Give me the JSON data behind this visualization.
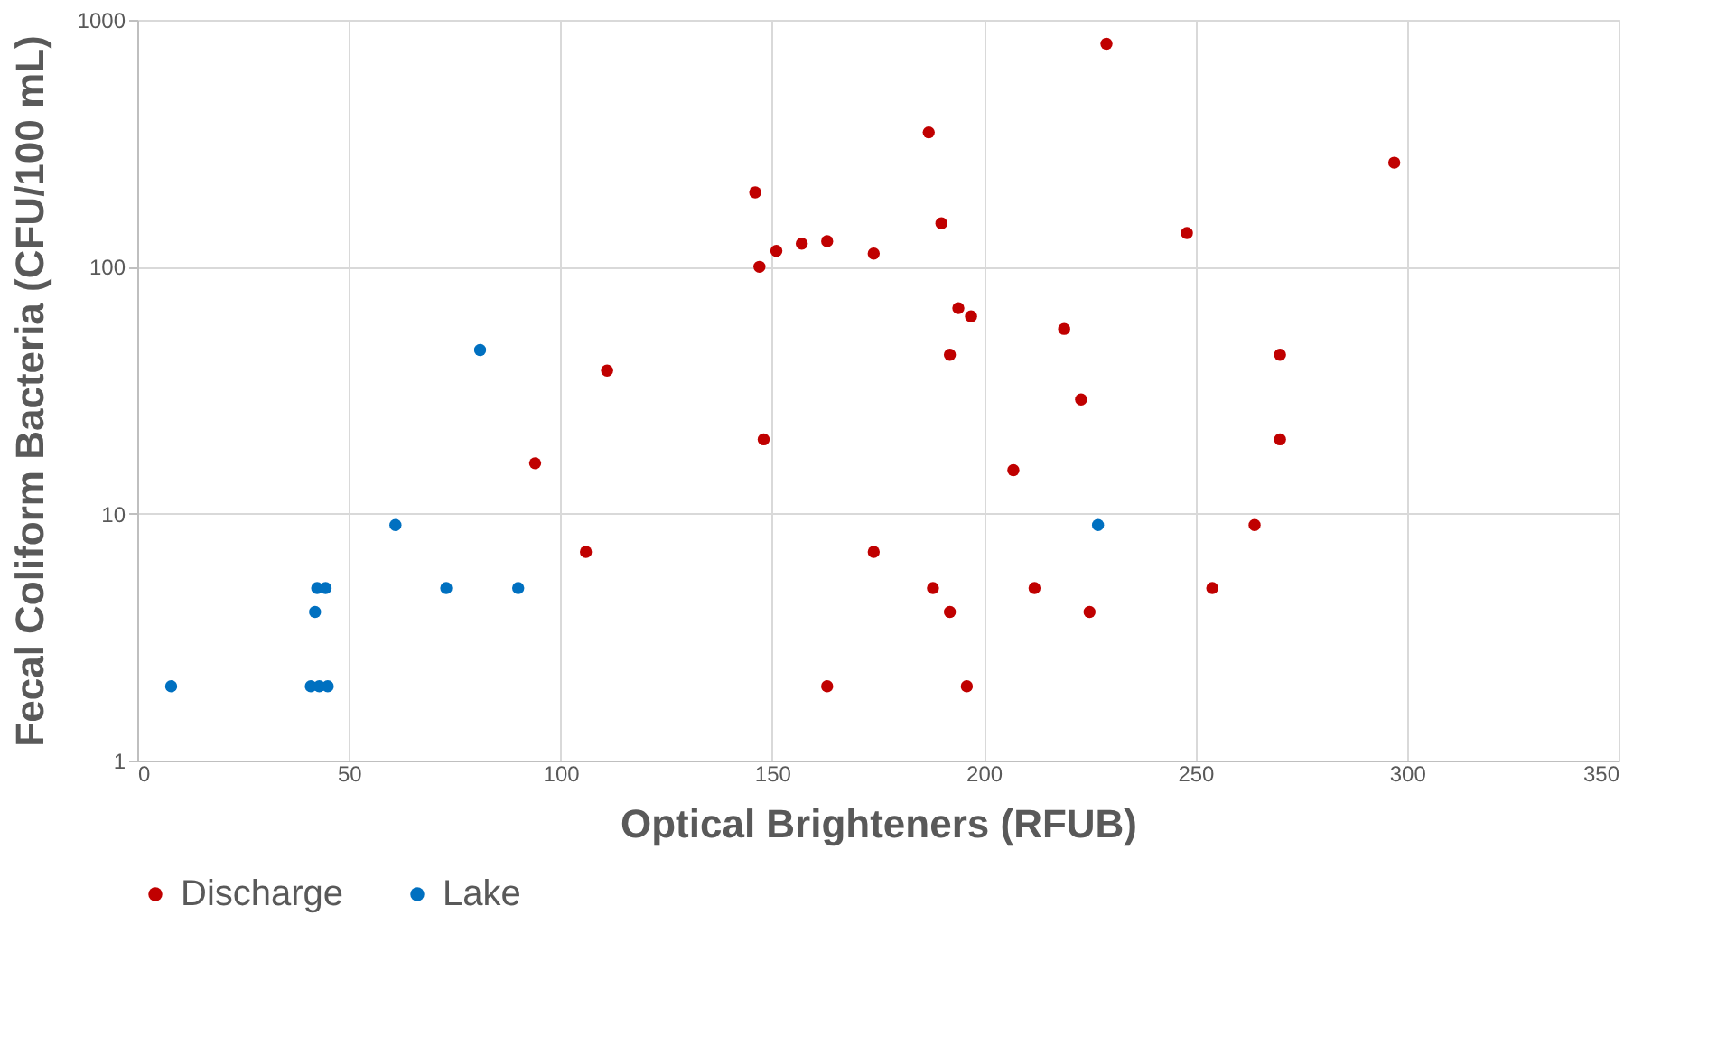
{
  "chart_data": {
    "type": "scatter",
    "xlabel": "Optical Brighteners (RFUB)",
    "ylabel": "Fecal Coliform Bacteria (CFU/100 mL)",
    "series": [
      {
        "name": "Discharge",
        "color": "#c00000",
        "x": [
          146,
          147,
          151,
          157,
          163,
          111,
          148,
          94,
          106,
          163,
          229,
          187,
          297,
          190,
          248,
          174,
          194,
          197,
          219,
          192,
          270,
          223,
          270,
          207,
          264,
          174,
          188,
          212,
          254,
          192,
          225,
          196
        ],
        "values": [
          200,
          100,
          116,
          124,
          127,
          38,
          20,
          16,
          7,
          2,
          800,
          350,
          264,
          150,
          137,
          113,
          68,
          63,
          56,
          44,
          44,
          29,
          20,
          15,
          9,
          7,
          5,
          5,
          5,
          4,
          4,
          2
        ]
      },
      {
        "name": "Lake",
        "color": "#0070c0",
        "x": [
          8,
          41,
          43,
          45,
          42,
          42.5,
          44.5,
          61,
          73,
          90,
          81,
          227
        ],
        "values": [
          2,
          2,
          2,
          2,
          4,
          5,
          5,
          9,
          5,
          5,
          46,
          9
        ]
      }
    ],
    "xlim": [
      0,
      350
    ],
    "xticks": [
      0,
      50,
      100,
      150,
      200,
      250,
      300,
      350
    ],
    "ylim": [
      1,
      1000
    ],
    "yticks": [
      1,
      10,
      100,
      1000
    ],
    "log": "y",
    "grid": true,
    "legend": "bottom",
    "marker": "circle"
  }
}
